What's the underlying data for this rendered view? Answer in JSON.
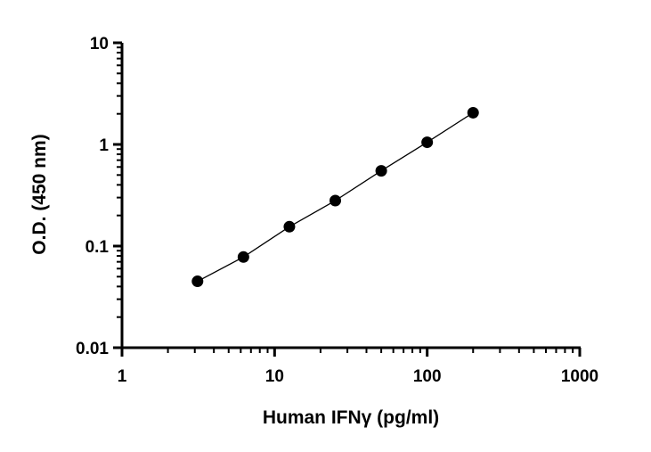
{
  "chart_data": {
    "type": "scatter",
    "title": "",
    "xlabel": "Human IFNγ (pg/ml)",
    "ylabel": "O.D. (450 nm)",
    "xscale": "log",
    "yscale": "log",
    "xlim": [
      1,
      1000
    ],
    "ylim": [
      0.01,
      10
    ],
    "xticks": [
      1,
      10,
      100,
      1000
    ],
    "xtick_labels": [
      "1",
      "10",
      "100",
      "1000"
    ],
    "yticks": [
      0.01,
      0.1,
      1,
      10
    ],
    "ytick_labels": [
      "0.01",
      "0.1",
      "1",
      "10"
    ],
    "grid": false,
    "series": [
      {
        "x": [
          3.125,
          6.25,
          12.5,
          25,
          50,
          100,
          200
        ],
        "y": [
          0.045,
          0.078,
          0.155,
          0.28,
          0.55,
          1.05,
          2.05
        ],
        "color": "#000000",
        "marker": "circle",
        "fit_line": true
      }
    ]
  }
}
